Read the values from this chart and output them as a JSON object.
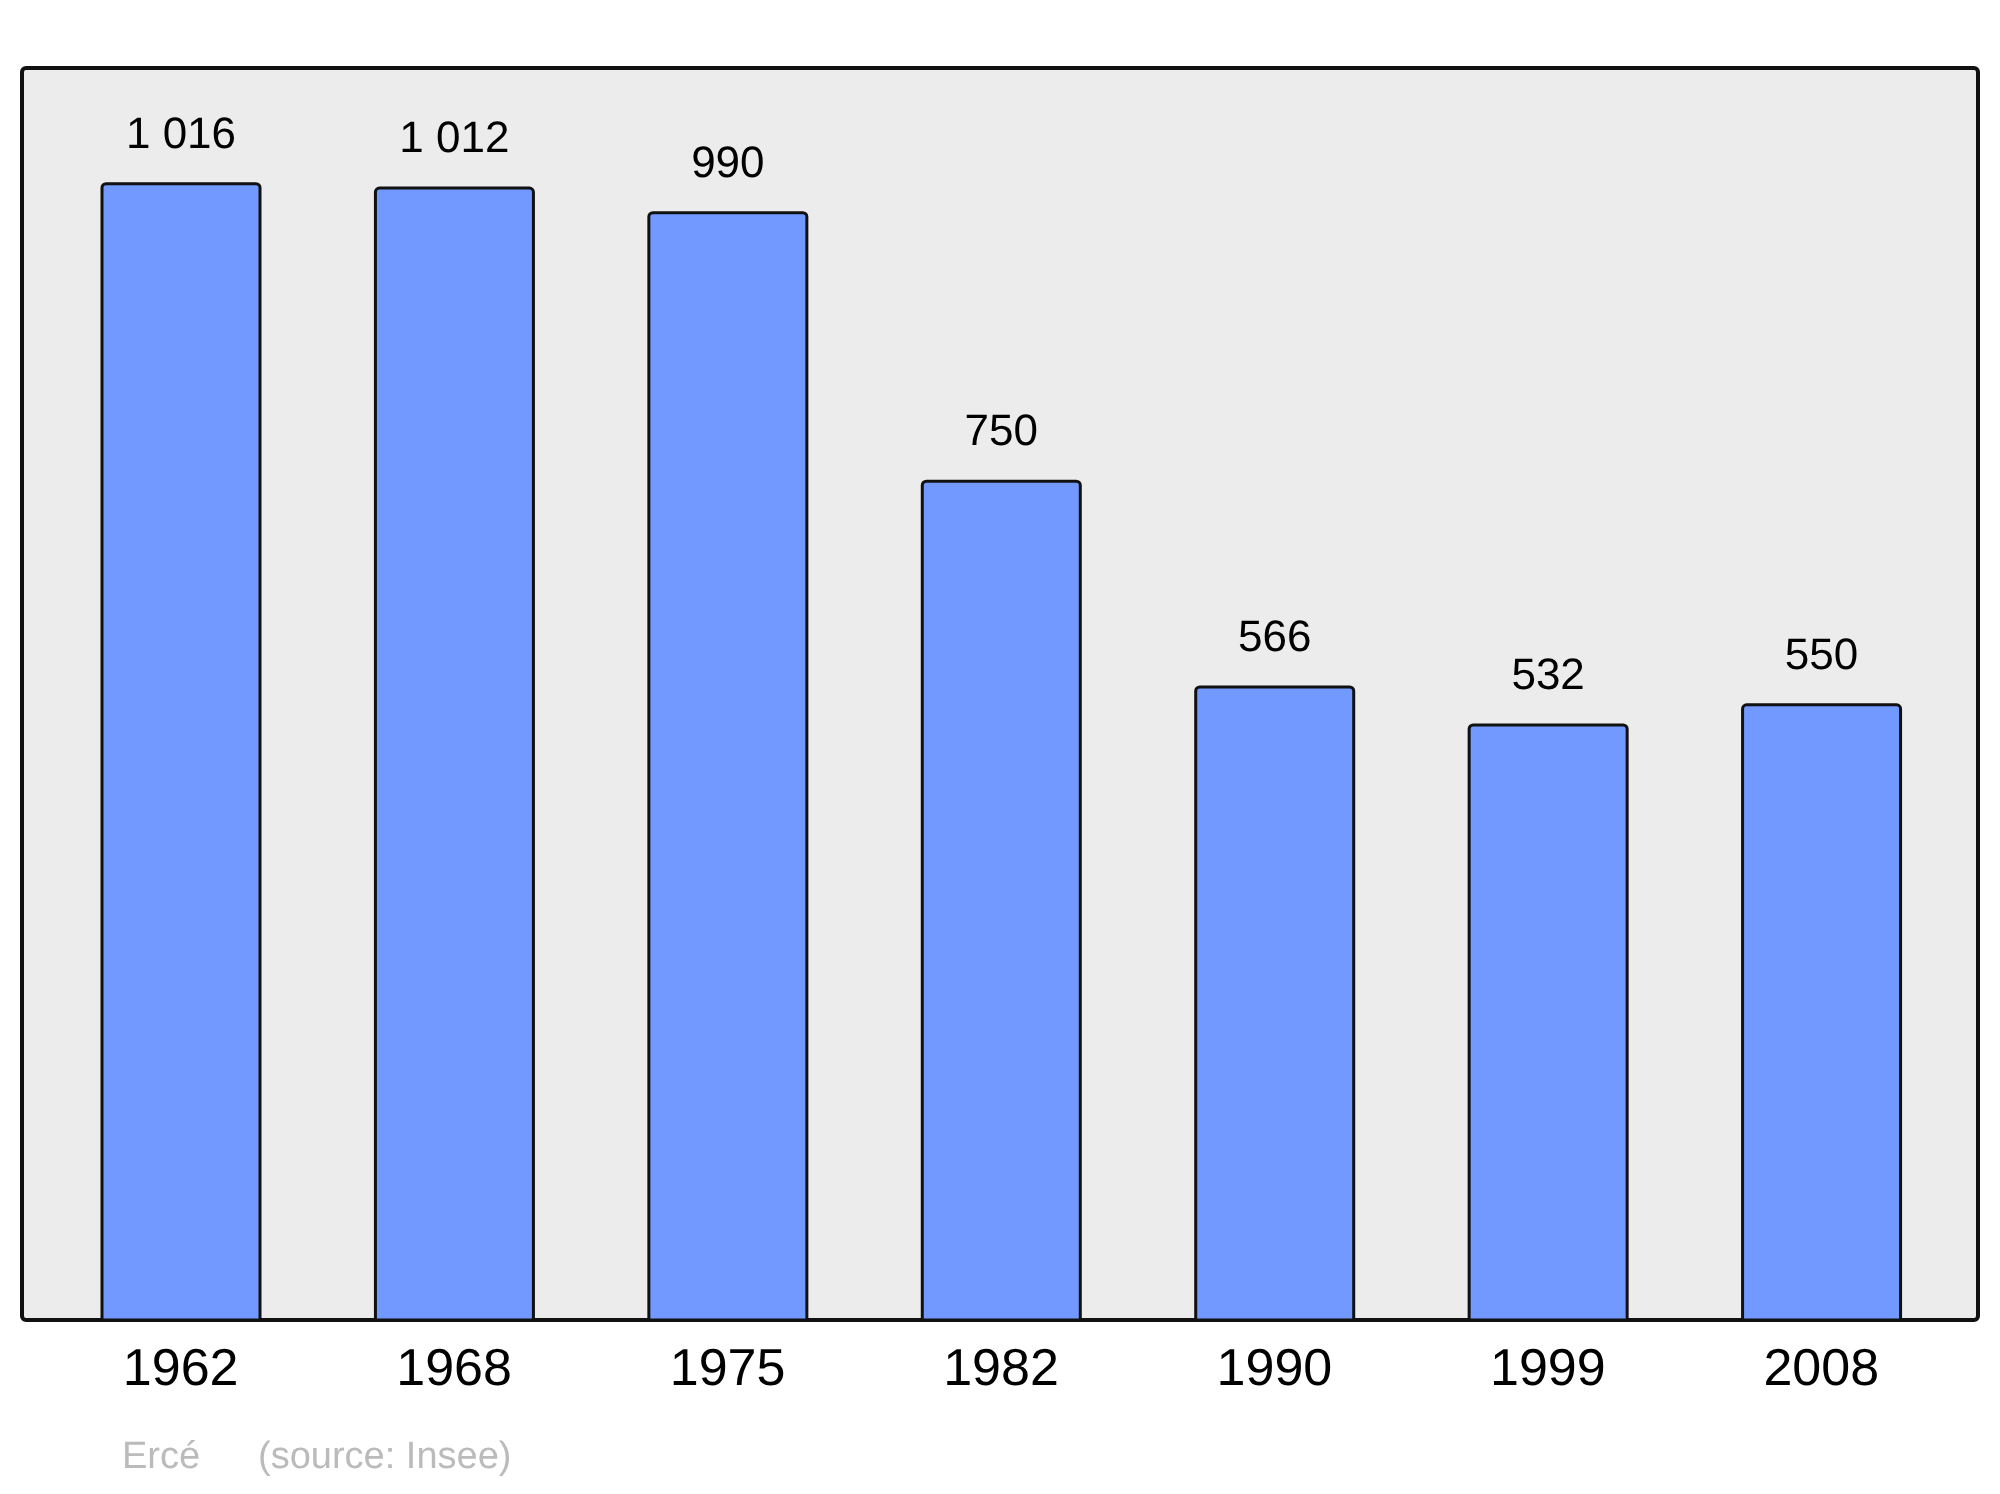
{
  "chart_data": {
    "type": "bar",
    "categories": [
      "1962",
      "1968",
      "1975",
      "1982",
      "1990",
      "1999",
      "2008"
    ],
    "values": [
      1016,
      1012,
      990,
      750,
      566,
      532,
      550
    ],
    "value_labels": [
      "1 016",
      "1 012",
      "990",
      "750",
      "566",
      "532",
      "550"
    ],
    "color": "#7299ff",
    "annotations": [
      "Ercé",
      "(source: Insee)"
    ]
  }
}
